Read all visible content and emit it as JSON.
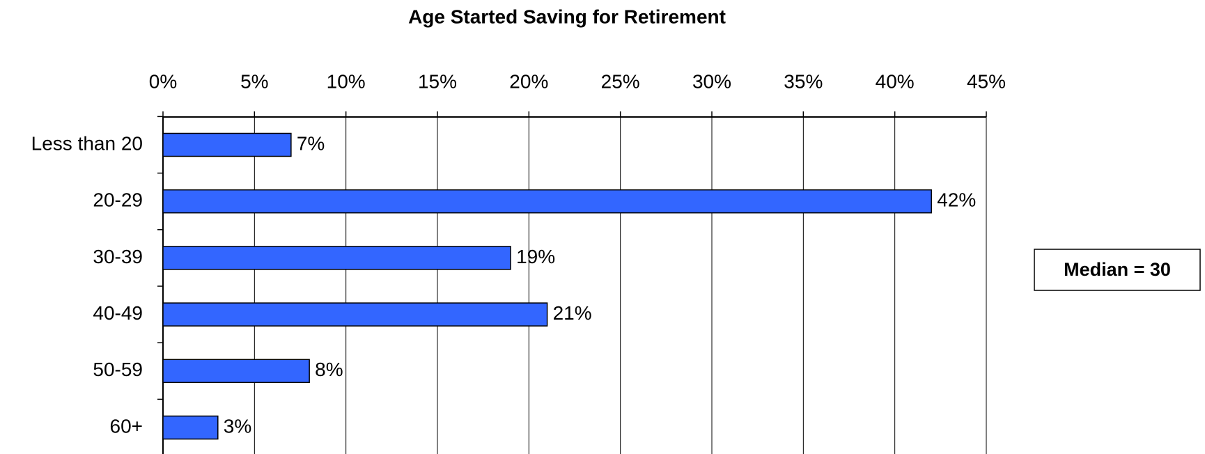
{
  "chart_data": {
    "type": "bar",
    "orientation": "horizontal",
    "title": "Age Started Saving for Retirement",
    "categories": [
      "Less than 20",
      "20-29",
      "30-39",
      "40-49",
      "50-59",
      "60+"
    ],
    "values": [
      7,
      42,
      19,
      21,
      8,
      3
    ],
    "value_labels": [
      "7%",
      "42%",
      "19%",
      "21%",
      "8%",
      "3%"
    ],
    "color": "#3366ff",
    "xlim": [
      0,
      45
    ],
    "xticks": [
      {
        "value": 0,
        "label": "0%"
      },
      {
        "value": 5,
        "label": "5%"
      },
      {
        "value": 10,
        "label": "10%"
      },
      {
        "value": 15,
        "label": "15%"
      },
      {
        "value": 20,
        "label": "20%"
      },
      {
        "value": 25,
        "label": "25%"
      },
      {
        "value": 30,
        "label": "30%"
      },
      {
        "value": 35,
        "label": "35%"
      },
      {
        "value": 40,
        "label": "40%"
      },
      {
        "value": 45,
        "label": "45%"
      }
    ],
    "grid": true,
    "annotation": "Median = 30"
  }
}
